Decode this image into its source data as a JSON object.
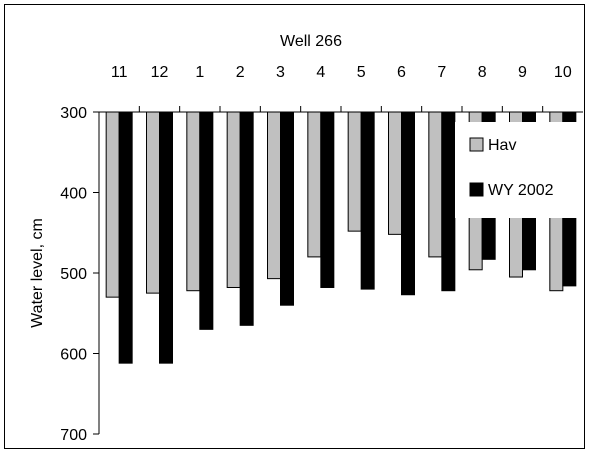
{
  "chart_data": {
    "type": "bar",
    "title": "Well 266",
    "xlabel": "",
    "ylabel": "Water level, cm",
    "categories": [
      "11",
      "12",
      "1",
      "2",
      "3",
      "4",
      "5",
      "6",
      "7",
      "8",
      "9",
      "10"
    ],
    "ylim": [
      300,
      700
    ],
    "y_inverted": true,
    "y_ticks": [
      300,
      400,
      500,
      600,
      700
    ],
    "x_axis_position": "top",
    "grid": false,
    "legend_position": "right",
    "series": [
      {
        "name": "Hav",
        "color": "#c0c0c0",
        "values": [
          530,
          525,
          522,
          518,
          507,
          480,
          448,
          452,
          480,
          496,
          505,
          522
        ]
      },
      {
        "name": "WY 2002",
        "color": "#000000",
        "values": [
          612,
          612,
          570,
          565,
          540,
          518,
          520,
          527,
          522,
          483,
          496,
          516
        ]
      }
    ]
  }
}
